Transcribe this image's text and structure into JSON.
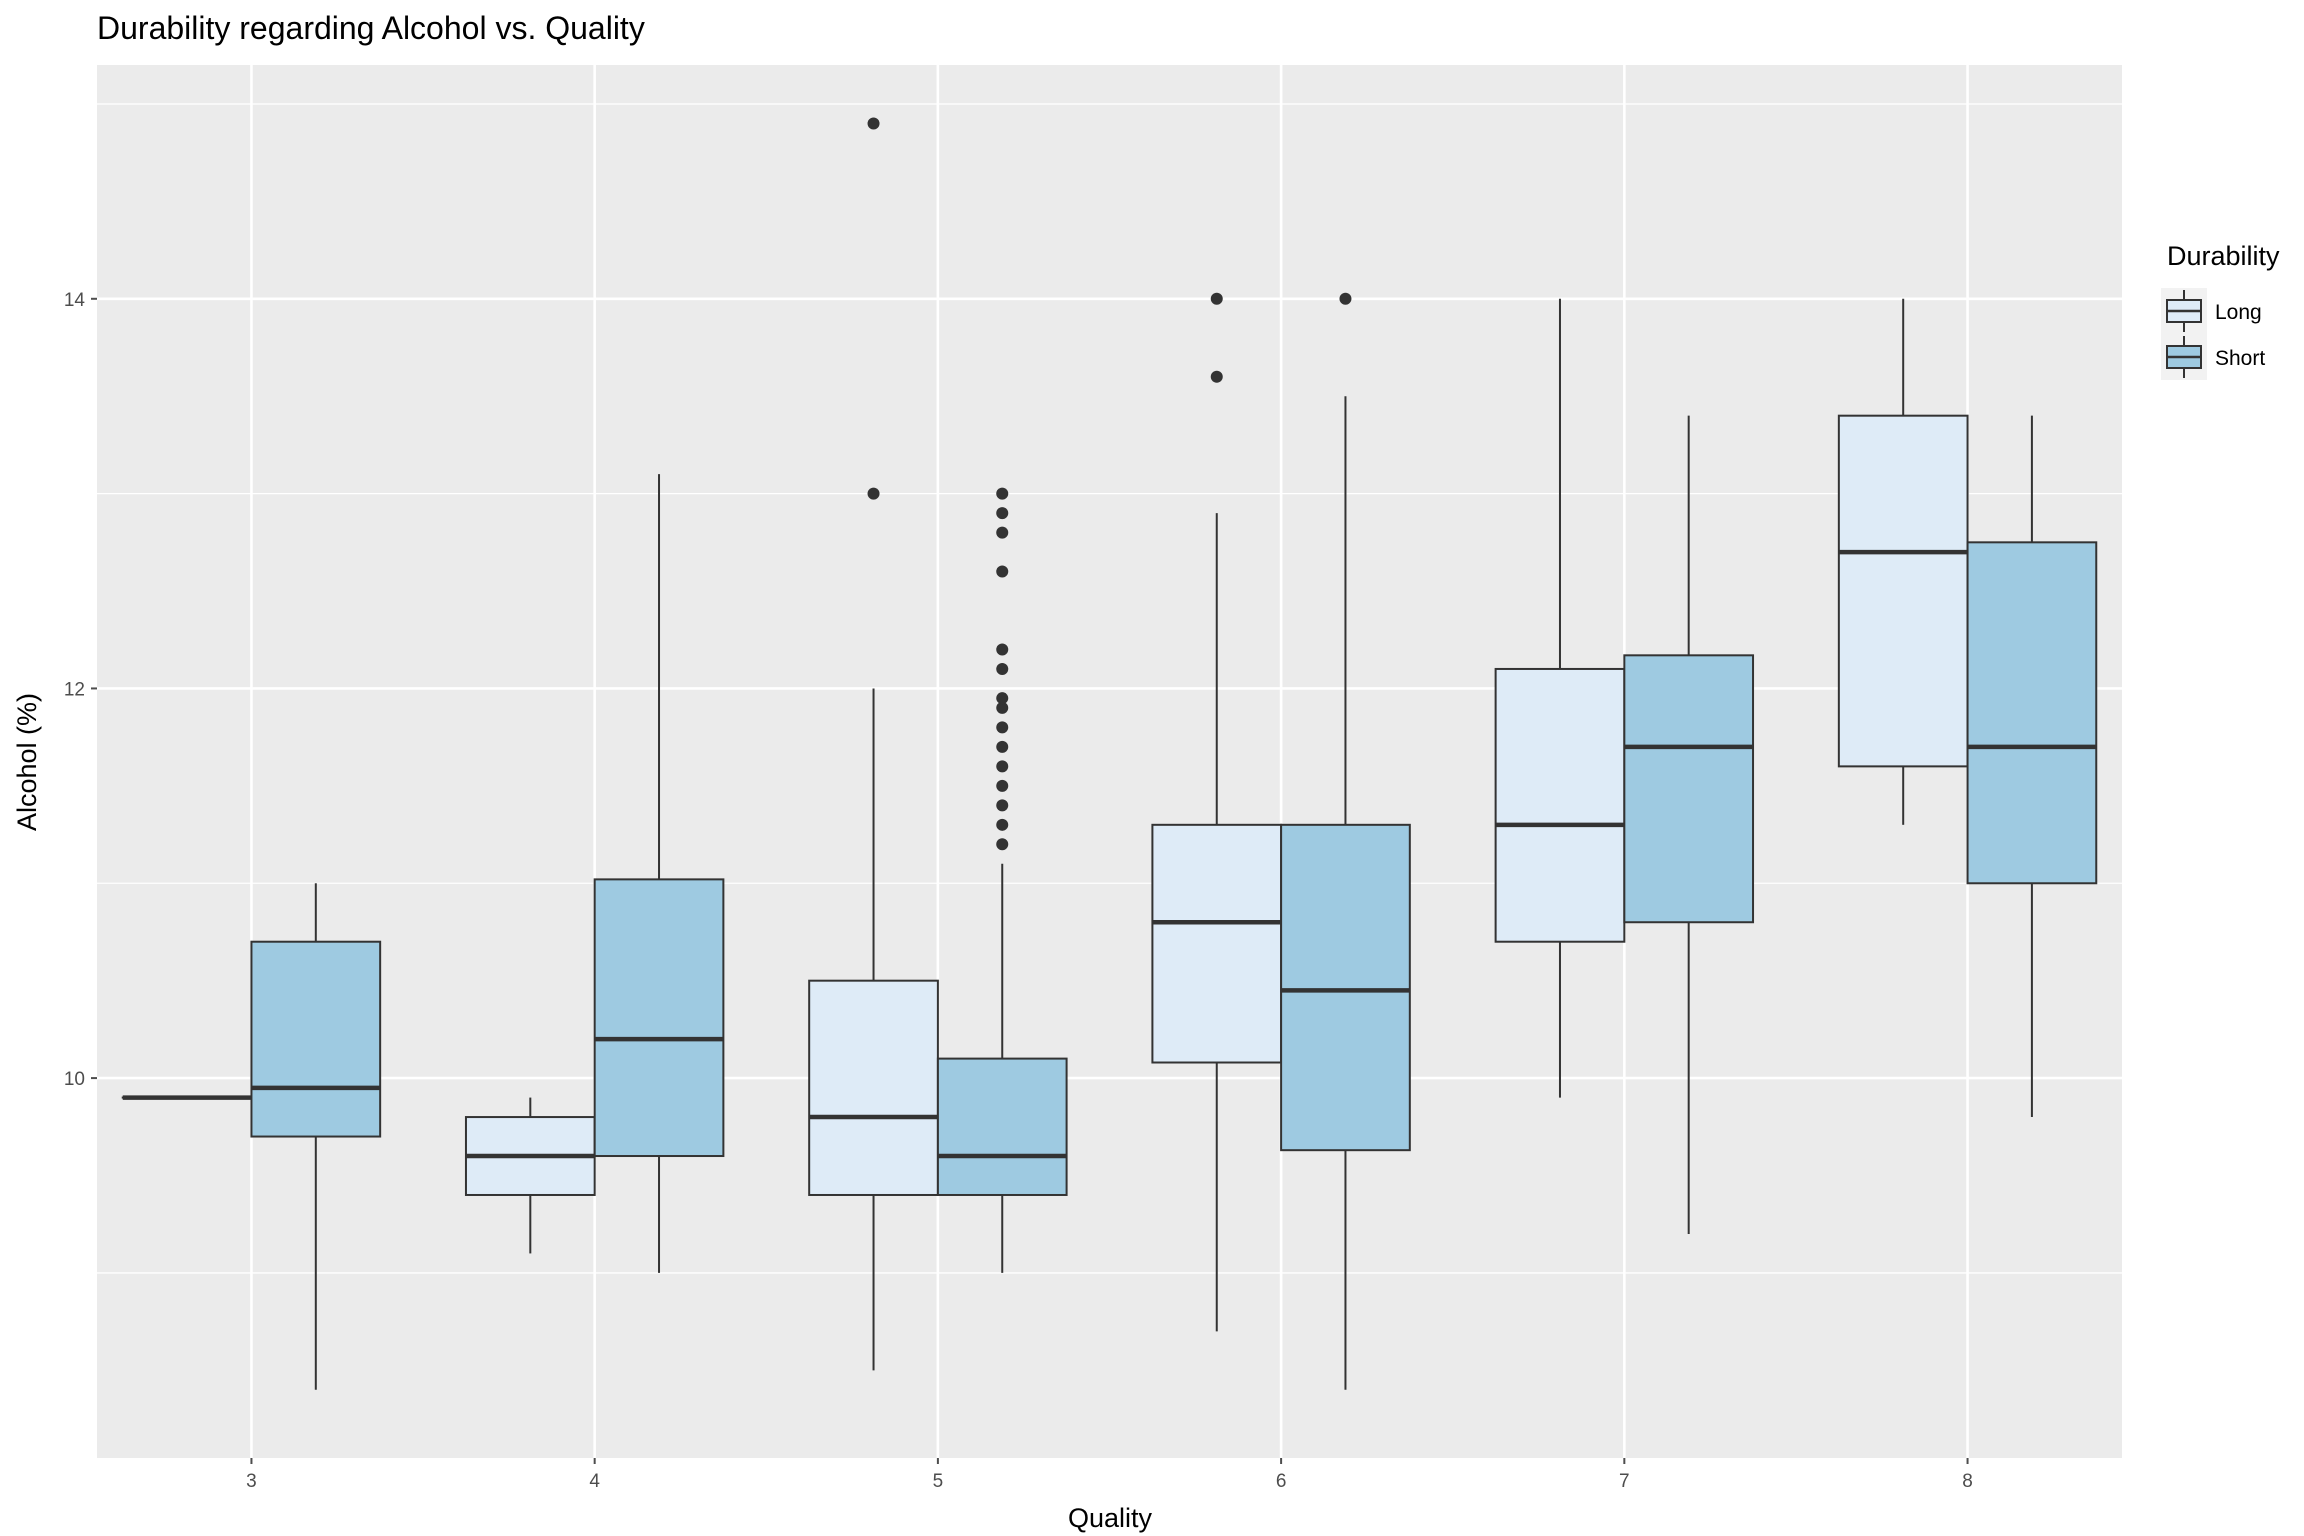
{
  "chart_data": {
    "type": "boxplot",
    "title": "Durability regarding Alcohol vs. Quality",
    "xlabel": "Quality",
    "ylabel": "Alcohol (%)",
    "categories": [
      "3",
      "4",
      "5",
      "6",
      "7",
      "8"
    ],
    "y_ticks": [
      10,
      12,
      14
    ],
    "ylim": [
      8.05,
      15.2
    ],
    "grid": true,
    "legend": {
      "title": "Durability",
      "position": "right"
    },
    "series": [
      {
        "name": "Long",
        "color": "#deebf7",
        "boxes": [
          {
            "category": "3",
            "min": 9.9,
            "q1": 9.9,
            "median": 9.9,
            "q3": 9.9,
            "max": 9.9,
            "outliers": []
          },
          {
            "category": "4",
            "min": 9.1,
            "q1": 9.4,
            "median": 9.6,
            "q3": 9.8,
            "max": 9.9,
            "outliers": []
          },
          {
            "category": "5",
            "min": 8.5,
            "q1": 9.4,
            "median": 9.8,
            "q3": 10.5,
            "max": 12.0,
            "outliers": [
              13.0,
              14.9
            ]
          },
          {
            "category": "6",
            "min": 8.7,
            "q1": 10.08,
            "median": 10.8,
            "q3": 11.3,
            "max": 12.9,
            "outliers": [
              13.6,
              14.0
            ]
          },
          {
            "category": "7",
            "min": 9.9,
            "q1": 10.7,
            "median": 11.3,
            "q3": 12.1,
            "max": 14.0,
            "outliers": []
          },
          {
            "category": "8",
            "min": 11.3,
            "q1": 11.6,
            "median": 12.7,
            "q3": 13.4,
            "max": 14.0,
            "outliers": []
          }
        ]
      },
      {
        "name": "Short",
        "color": "#9ecae1",
        "boxes": [
          {
            "category": "3",
            "min": 8.4,
            "q1": 9.7,
            "median": 9.95,
            "q3": 10.7,
            "max": 11.0,
            "outliers": []
          },
          {
            "category": "4",
            "min": 9.0,
            "q1": 9.6,
            "median": 10.2,
            "q3": 11.02,
            "max": 13.1,
            "outliers": []
          },
          {
            "category": "5",
            "min": 9.0,
            "q1": 9.4,
            "median": 9.6,
            "q3": 10.1,
            "max": 11.1,
            "outliers": [
              11.2,
              11.3,
              11.4,
              11.5,
              11.6,
              11.7,
              11.8,
              11.9,
              11.95,
              12.1,
              12.2,
              12.6,
              12.8,
              12.9,
              13.0
            ]
          },
          {
            "category": "6",
            "min": 8.4,
            "q1": 9.63,
            "median": 10.45,
            "q3": 11.3,
            "max": 13.5,
            "outliers": [
              14.0
            ]
          },
          {
            "category": "7",
            "min": 9.2,
            "q1": 10.8,
            "median": 11.7,
            "q3": 12.17,
            "max": 13.4,
            "outliers": []
          },
          {
            "category": "8",
            "min": 9.8,
            "q1": 11.0,
            "median": 11.7,
            "q3": 12.75,
            "max": 13.4,
            "outliers": []
          }
        ]
      }
    ]
  },
  "style": {
    "panel_bg": "#ebebeb",
    "grid_color": "#ffffff",
    "box_stroke": "#333333",
    "text_color": "#000000",
    "tick_color": "#4d4d4d"
  }
}
